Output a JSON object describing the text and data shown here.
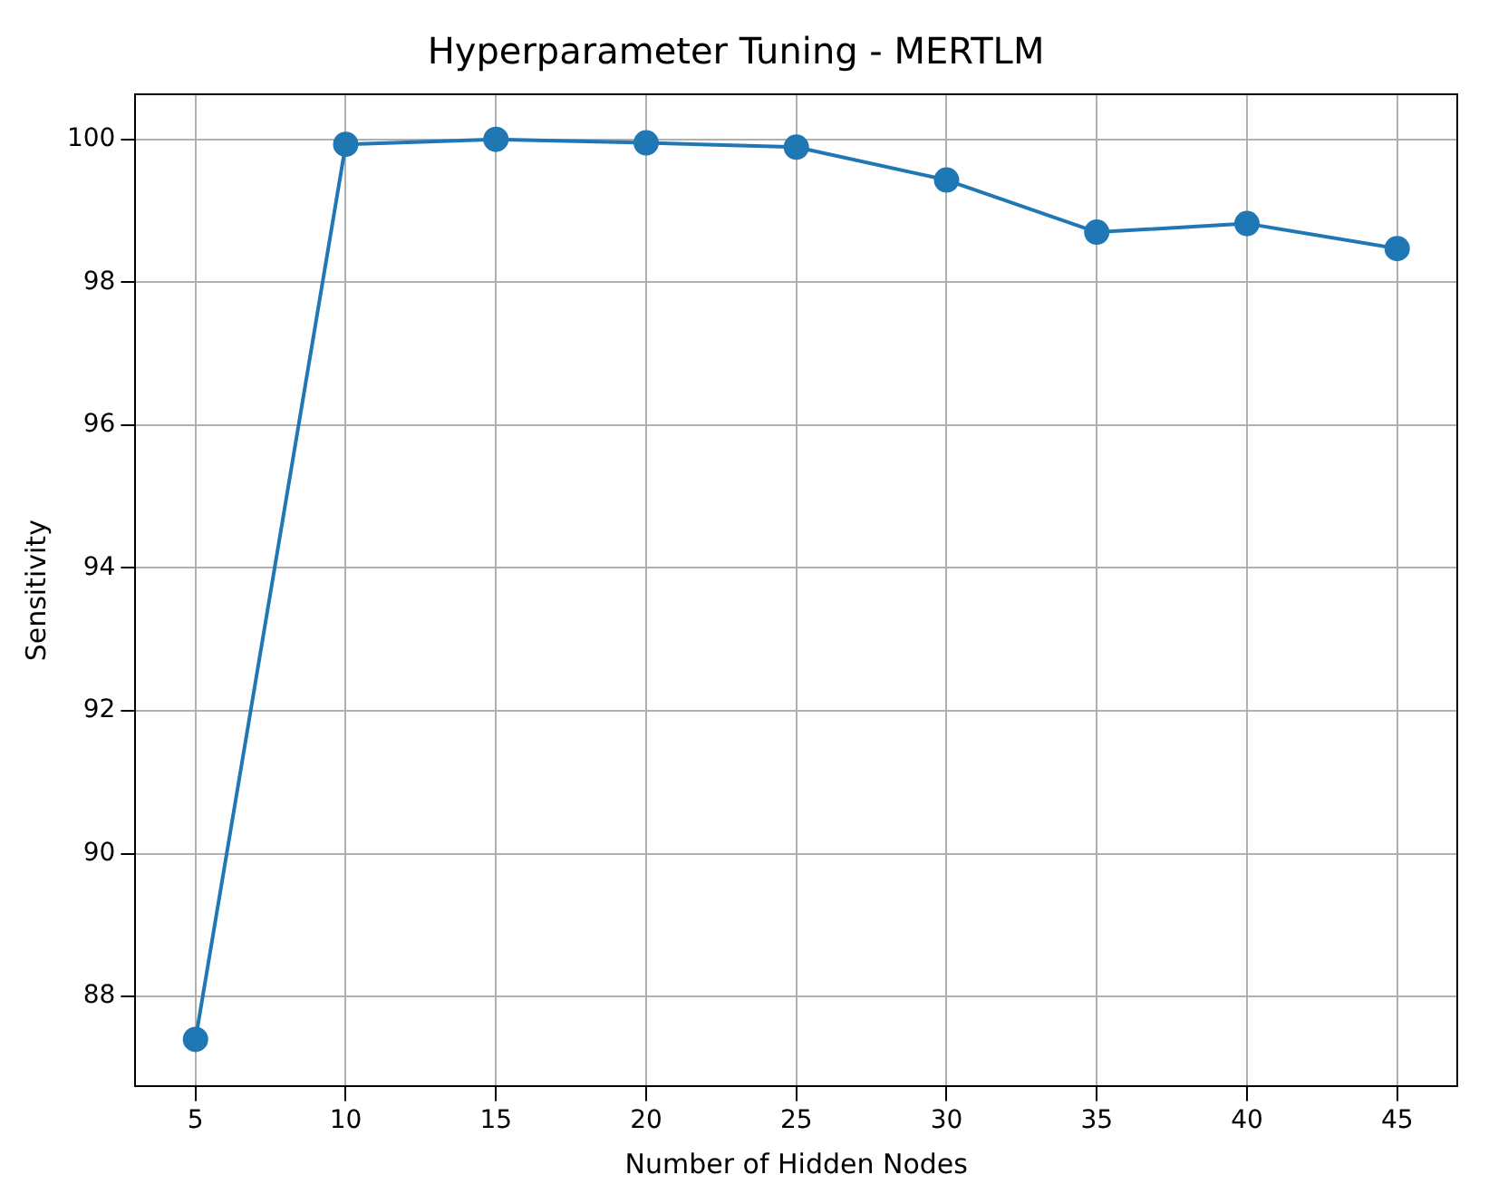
{
  "chart_data": {
    "type": "line",
    "title": "Hyperparameter Tuning - MERTLM",
    "xlabel": "Number of Hidden Nodes",
    "ylabel": "Sensitivity",
    "x": [
      5,
      10,
      15,
      20,
      25,
      30,
      35,
      40,
      45
    ],
    "series": [
      {
        "color": "#1f77b4",
        "values": [
          87.4,
          99.93,
          100.0,
          99.95,
          99.89,
          99.43,
          98.7,
          98.82,
          98.47
        ]
      }
    ],
    "xlim": [
      3,
      47
    ],
    "xticks": [
      5,
      10,
      15,
      20,
      25,
      30,
      35,
      40,
      45
    ],
    "ylim": [
      86.74,
      100.63
    ],
    "yticks": [
      88,
      90,
      92,
      94,
      96,
      98,
      100
    ],
    "grid": true,
    "marker": "circle",
    "line_style": "solid"
  }
}
